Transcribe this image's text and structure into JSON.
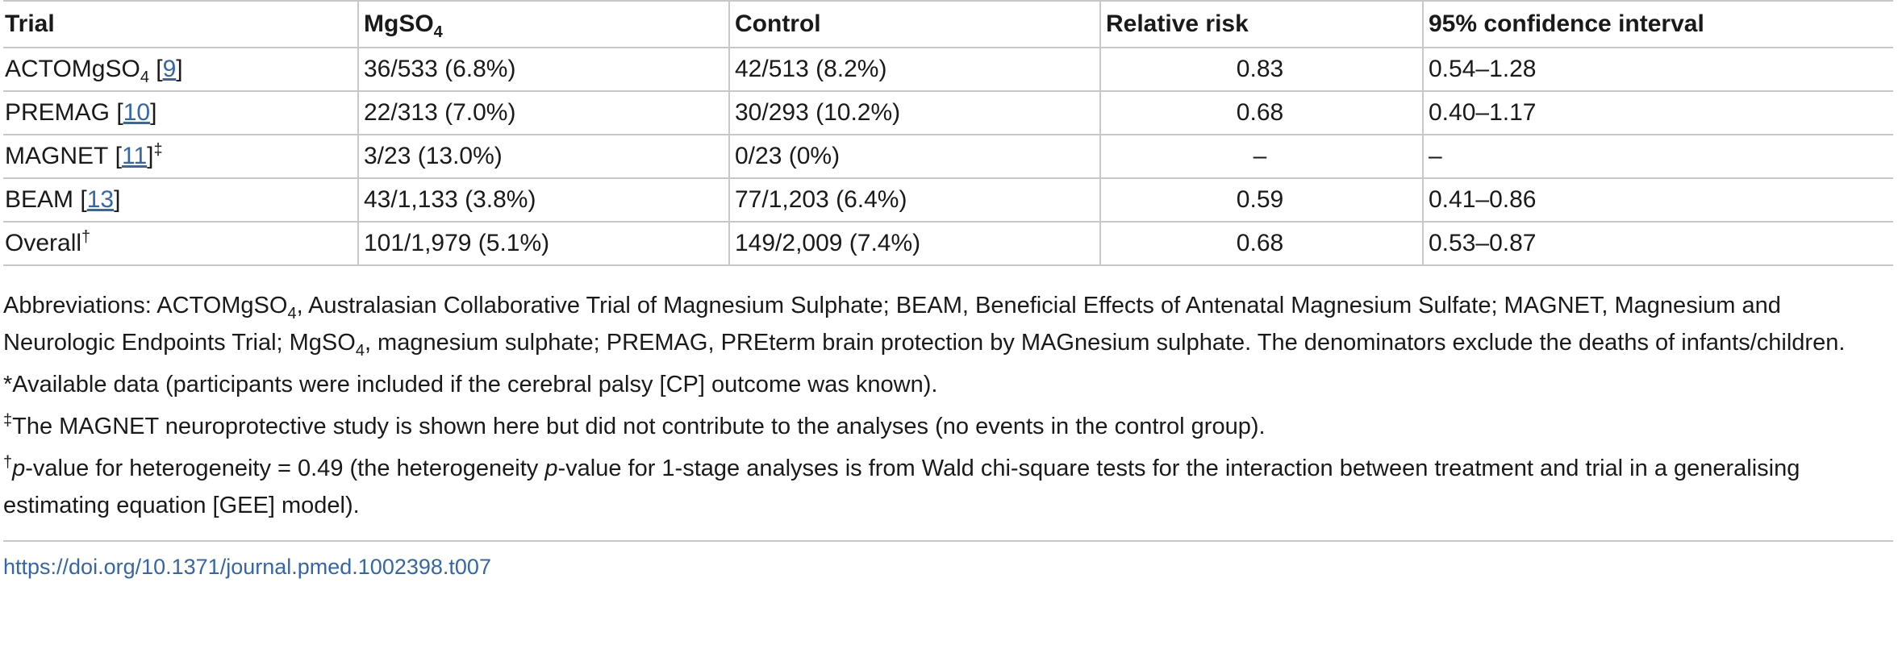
{
  "table": {
    "headers": {
      "trial": "Trial",
      "mgso4_main": "MgSO",
      "mgso4_sub": "4",
      "control": "Control",
      "relative_risk": "Relative risk",
      "ci": "95% confidence interval"
    },
    "rows": [
      {
        "trial_name": "ACTOMgSO",
        "trial_sub": "4",
        "trial_pre_ref": " [",
        "ref": "9",
        "trial_post_ref": "]",
        "trial_sup": "",
        "mgso4": "36/533 (6.8%)",
        "control": "42/513 (8.2%)",
        "rr": "0.83",
        "ci": "0.54–1.28"
      },
      {
        "trial_name": "PREMAG",
        "trial_sub": "",
        "trial_pre_ref": " [",
        "ref": "10",
        "trial_post_ref": "]",
        "trial_sup": "",
        "mgso4": "22/313 (7.0%)",
        "control": "30/293 (10.2%)",
        "rr": "0.68",
        "ci": "0.40–1.17"
      },
      {
        "trial_name": "MAGNET",
        "trial_sub": "",
        "trial_pre_ref": " [",
        "ref": "11",
        "trial_post_ref": "]",
        "trial_sup": "‡",
        "mgso4": "3/23 (13.0%)",
        "control": "0/23 (0%)",
        "rr": "–",
        "ci": "–"
      },
      {
        "trial_name": "BEAM",
        "trial_sub": "",
        "trial_pre_ref": " [",
        "ref": "13",
        "trial_post_ref": "]",
        "trial_sup": "",
        "mgso4": "43/1,133 (3.8%)",
        "control": "77/1,203 (6.4%)",
        "rr": "0.59",
        "ci": "0.41–0.86"
      },
      {
        "trial_name": "Overall",
        "trial_sub": "",
        "trial_pre_ref": "",
        "ref": "",
        "trial_post_ref": "",
        "trial_sup": "†",
        "mgso4": "101/1,979 (5.1%)",
        "control": "149/2,009 (7.4%)",
        "rr": "0.68",
        "ci": "0.53–0.87"
      }
    ]
  },
  "footnotes": {
    "abbrev_1": "Abbreviations: ACTOMgSO",
    "abbrev_1_sub": "4",
    "abbrev_2": ", Australasian Collaborative Trial of Magnesium Sulphate; BEAM, Beneficial Effects of Antenatal Magnesium Sulfate; MAGNET, Magnesium and Neurologic Endpoints Trial; MgSO",
    "abbrev_2_sub": "4",
    "abbrev_3": ", magnesium sulphate; PREMAG, PREterm brain protection by MAGnesium sulphate. The denominators exclude the deaths of infants/children.",
    "star_mark": "*",
    "star_text": "Available data (participants were included if the cerebral palsy [CP] outcome was known).",
    "ddagger_mark": "‡",
    "ddagger_text": "The MAGNET neuroprotective study is shown here but did not contribute to the analyses (no events in the control group).",
    "dagger_mark": "†",
    "dagger_p1": "p",
    "dagger_text_1": "-value for heterogeneity = 0.49 (the heterogeneity ",
    "dagger_p2": "p",
    "dagger_text_2": "-value for 1-stage analyses is from Wald chi-square tests for the interaction between treatment and trial in a generalising estimating equation [GEE] model)."
  },
  "doi": "https://doi.org/10.1371/journal.pmed.1002398.t007"
}
